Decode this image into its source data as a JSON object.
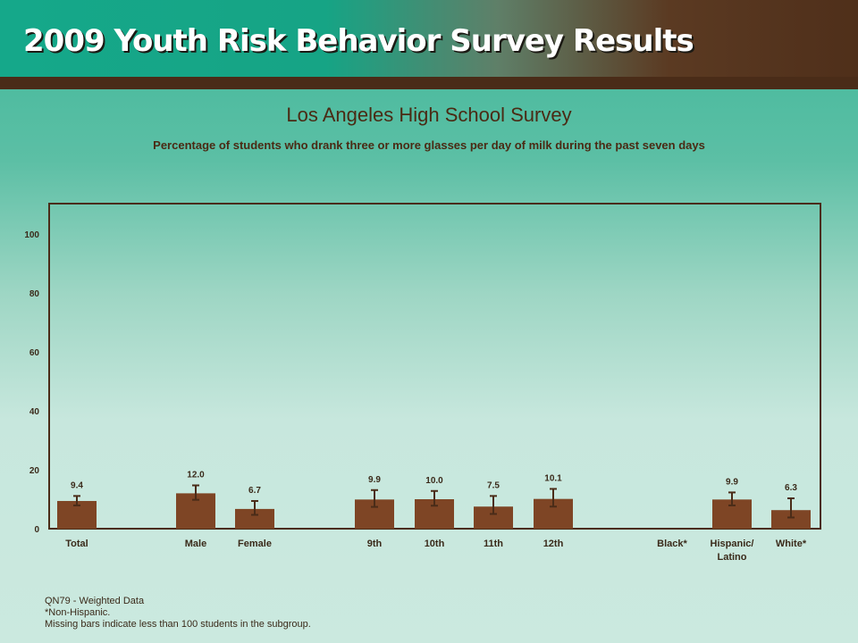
{
  "banner": {
    "title": "2009 Youth Risk Behavior Survey Results"
  },
  "colors": {
    "bar": "#7e4525",
    "plot_border": "#4a2c18",
    "text": "#3a2a1a",
    "banner_dark": "#4a2c18",
    "banner_teal": "#15a88a"
  },
  "chart_data": {
    "type": "bar",
    "title": "Los Angeles High School Survey",
    "subtitle": "Percentage of students who drank three or more glasses per day of milk during the past seven days",
    "ylim": [
      0,
      110
    ],
    "yticks": [
      0,
      20,
      40,
      60,
      80,
      100
    ],
    "grid": false,
    "error_bars": true,
    "categories": [
      {
        "label": "Total",
        "value": 9.4,
        "value_label": "9.4",
        "ci": [
          7.9,
          11.1
        ]
      },
      {
        "label": "Male",
        "value": 12.0,
        "value_label": "12.0",
        "ci": [
          9.8,
          14.7
        ]
      },
      {
        "label": "Female",
        "value": 6.7,
        "value_label": "6.7",
        "ci": [
          4.7,
          9.4
        ]
      },
      {
        "label": "9th",
        "value": 9.9,
        "value_label": "9.9",
        "ci": [
          7.4,
          13.1
        ]
      },
      {
        "label": "10th",
        "value": 10.0,
        "value_label": "10.0",
        "ci": [
          7.8,
          12.8
        ]
      },
      {
        "label": "11th",
        "value": 7.5,
        "value_label": "7.5",
        "ci": [
          5.0,
          11.1
        ]
      },
      {
        "label": "12th",
        "value": 10.1,
        "value_label": "10.1",
        "ci": [
          7.5,
          13.5
        ]
      },
      {
        "label": "Black*",
        "value": null,
        "value_label": "",
        "ci": null
      },
      {
        "label": "Hispanic/",
        "label2": "Latino",
        "value": 9.9,
        "value_label": "9.9",
        "ci": [
          7.9,
          12.3
        ]
      },
      {
        "label": "White*",
        "value": 6.3,
        "value_label": "6.3",
        "ci": [
          3.8,
          10.3
        ]
      }
    ]
  },
  "notes": [
    "QN79 - Weighted Data",
    "*Non-Hispanic.",
    "Missing bars indicate less than 100 students in the subgroup."
  ]
}
